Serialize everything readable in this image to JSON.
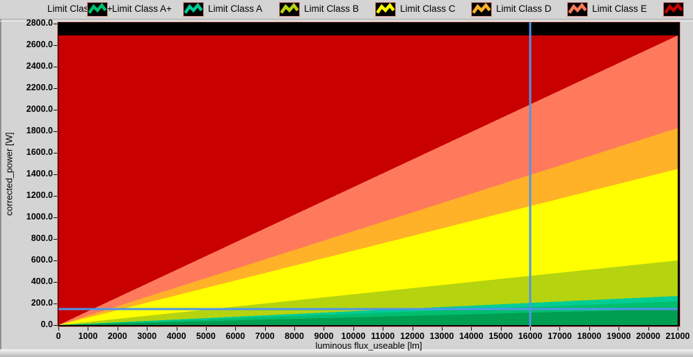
{
  "window": {
    "background": "#d4d4d4",
    "plot_background": "#000000",
    "plot_frame_color": "#dd8b82"
  },
  "legend": {
    "items": [
      {
        "label": "Limit Class A++",
        "color": "#009E50",
        "icon": "wave-glyph",
        "icon_visible": false
      },
      {
        "label": "Limit Class A+",
        "color": "#00BE6E",
        "icon": "wave-glyph",
        "icon_visible": true
      },
      {
        "label": "Limit Class A",
        "color": "#00CC96",
        "icon": "wave-glyph",
        "icon_visible": true
      },
      {
        "label": "Limit Class B",
        "color": "#B5D40F",
        "icon": "wave-glyph",
        "icon_visible": true
      },
      {
        "label": "Limit Class C",
        "color": "#FFFF00",
        "icon": "wave-glyph",
        "icon_visible": true
      },
      {
        "label": "Limit Class D",
        "color": "#FFB128",
        "icon": "wave-glyph",
        "icon_visible": true
      },
      {
        "label": "Limit Class E",
        "color": "#FF7A5C",
        "icon": "wave-glyph",
        "icon_visible": true
      },
      {
        "label": "",
        "color": "#C80000",
        "icon": "wave-glyph",
        "icon_visible": true
      }
    ]
  },
  "chart_data": {
    "type": "area",
    "title": "",
    "xlabel": "luminous flux_useable [lm]",
    "ylabel": "corrected_power [W]",
    "xlim": [
      0,
      21000
    ],
    "ylim": [
      0,
      2800
    ],
    "x_tick_step": 1000,
    "y_tick_step": 200,
    "grid": false,
    "legend_position": "top",
    "plot_bg": "#000000",
    "description": "Stacked limit-class wedge regions radiating from the origin; each class region lies between the previous class line and its own straight limit line P = slope * flux.",
    "x_tick_labels": [
      "0",
      "1000",
      "2000",
      "3000",
      "4000",
      "5000",
      "6000",
      "7000",
      "8000",
      "9000",
      "10000",
      "11000",
      "12000",
      "13000",
      "14000",
      "15000",
      "16000",
      "17000",
      "18000",
      "19000",
      "20000",
      "21000"
    ],
    "y_tick_labels": [
      "2800.0",
      "2600.0",
      "2400.0",
      "2200.0",
      "2000.0",
      "1800.0",
      "1600.0",
      "1400.0",
      "1200.0",
      "1000.0",
      "800.0",
      "600.0",
      "400.0",
      "200.0",
      "0.0"
    ],
    "series": [
      {
        "name": "Limit Class A++",
        "color": "#009E50",
        "upper_power_at_21000lm": 150
      },
      {
        "name": "Limit Class A+",
        "color": "#00BE6E",
        "upper_power_at_21000lm": 220
      },
      {
        "name": "Limit Class A",
        "color": "#00CC96",
        "upper_power_at_21000lm": 270
      },
      {
        "name": "Limit Class B",
        "color": "#B5D40F",
        "upper_power_at_21000lm": 600
      },
      {
        "name": "Limit Class C",
        "color": "#FFFF00",
        "upper_power_at_21000lm": 1450
      },
      {
        "name": "Limit Class D",
        "color": "#FFB128",
        "upper_power_at_21000lm": 1830
      },
      {
        "name": "Limit Class E",
        "color": "#FF7A5C",
        "upper_power_at_21000lm": 2690
      }
    ],
    "overflow_region": {
      "name": "above-class-E",
      "color": "#C80000",
      "cap_power": 2690
    },
    "cursor": {
      "x": 16000,
      "y": 150,
      "color": "#4E95E8"
    }
  }
}
